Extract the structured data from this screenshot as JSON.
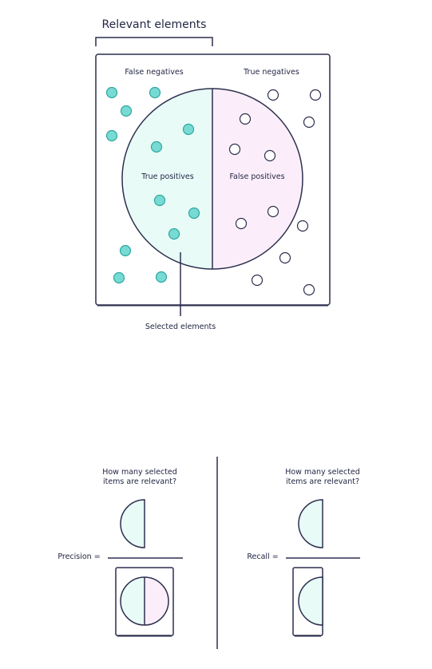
{
  "colors": {
    "line": "#2d2f4e",
    "text": "#232744",
    "relevant_fill": "#e8fbf7",
    "positive_fill": "#fbeefa",
    "relevant_dot": "#77dbd4",
    "relevant_dot_stroke": "#2fa6a0"
  },
  "top": {
    "bracket_label": "Relevant elements",
    "false_negatives": "False negatives",
    "true_negatives": "True negatives",
    "true_positives": "True positives",
    "false_positives": "False positives",
    "selected_elements": "Selected elements"
  },
  "precision": {
    "question_line1": "How many selected",
    "question_line2": "items are relevant?",
    "label": "Precision ="
  },
  "recall": {
    "question_line1": "How many selected",
    "question_line2": "items are relevant?",
    "label": "Recall ="
  }
}
